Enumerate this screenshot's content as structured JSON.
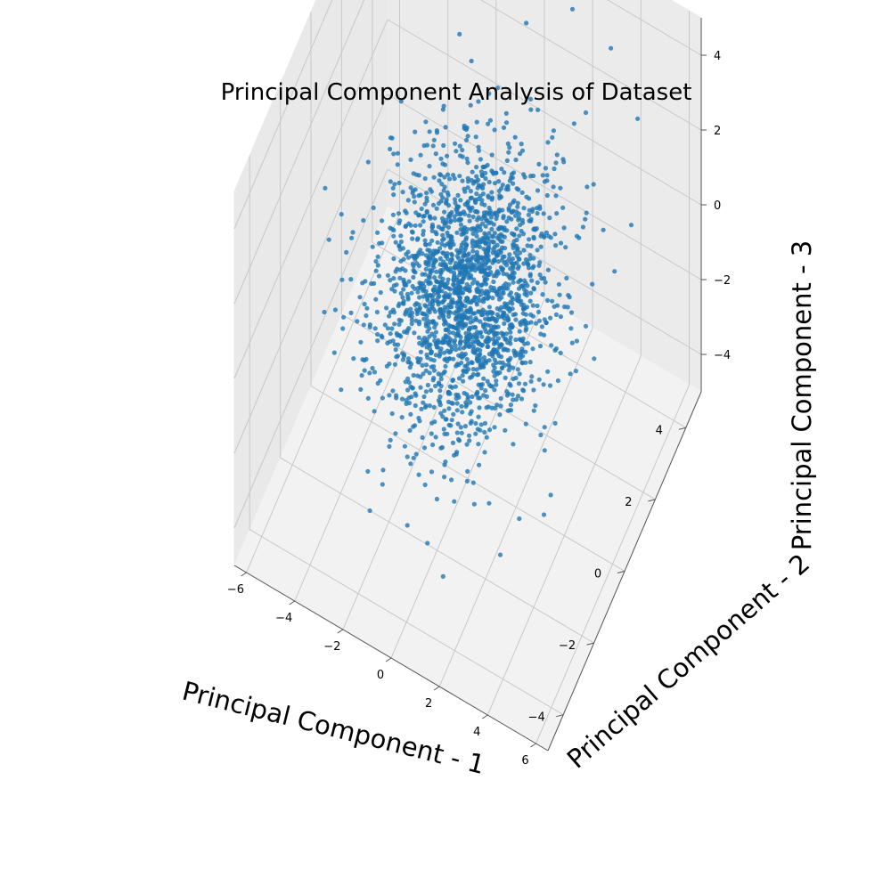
{
  "chart_data": {
    "type": "scatter",
    "projection": "3d",
    "title": "Principal Component Analysis of Dataset",
    "xlabel": "Principal Component - 1",
    "ylabel": "Principal Component - 2",
    "zlabel": "Principal Component - 3",
    "xlim": [
      -6.5,
      6.5
    ],
    "ylim": [
      -5,
      5
    ],
    "zlim": [
      -5,
      5
    ],
    "xticks": [
      -6,
      -4,
      -2,
      0,
      2,
      4,
      6
    ],
    "yticks": [
      -4,
      -2,
      0,
      2,
      4
    ],
    "zticks": [
      -4,
      -2,
      0,
      2,
      4
    ],
    "xtick_labels": [
      "−6",
      "−4",
      "−2",
      "0",
      "2",
      "4",
      "6"
    ],
    "ytick_labels": [
      "−4",
      "−2",
      "0",
      "2",
      "4"
    ],
    "ztick_labels": [
      "−4",
      "−2",
      "0",
      "2",
      "4"
    ],
    "grid": true,
    "legend": "none",
    "colors": {
      "marker": "#1f77b4",
      "pane_left": "#e9e9e9",
      "pane_right": "#ebebeb",
      "pane_floor": "#f2f2f2",
      "grid": "#c8c8c8"
    },
    "series": [
      {
        "distribution": "approximately normal, centered at origin",
        "center": [
          0,
          0,
          0
        ],
        "stdev": [
          1.6,
          1.5,
          1.1
        ],
        "n_points": 2000,
        "points": [
          [
            -4.8,
            -1.5,
            1.0
          ],
          [
            -4.5,
            -0.5,
            0.2
          ],
          [
            -3.8,
            0.9,
            1.5
          ],
          [
            -3.2,
            1.5,
            0.5
          ],
          [
            -2.5,
            -0.3,
            2.0
          ],
          [
            -1.5,
            2.6,
            3.1
          ],
          [
            0.2,
            3.5,
            3.9
          ],
          [
            1.8,
            4.0,
            4.4
          ],
          [
            3.2,
            4.3,
            3.6
          ],
          [
            4.5,
            4.0,
            2.5
          ],
          [
            5.0,
            2.8,
            1.0
          ],
          [
            4.6,
            1.0,
            -1.0
          ],
          [
            4.3,
            -1.8,
            -2.6
          ],
          [
            3.0,
            -2.6,
            -3.4
          ],
          [
            1.2,
            -3.5,
            -3.8
          ],
          [
            -0.6,
            -3.0,
            -3.6
          ],
          [
            -2.3,
            -2.9,
            -2.9
          ],
          [
            -3.6,
            -2.6,
            -1.5
          ],
          [
            -0.5,
            0.3,
            0.2
          ],
          [
            0.7,
            -0.6,
            -0.5
          ],
          [
            1.6,
            0.4,
            -0.7
          ],
          [
            -1.2,
            -0.8,
            0.6
          ],
          [
            2.4,
            1.2,
            -1.4
          ],
          [
            -2.1,
            1.1,
            1.2
          ]
        ]
      }
    ]
  }
}
